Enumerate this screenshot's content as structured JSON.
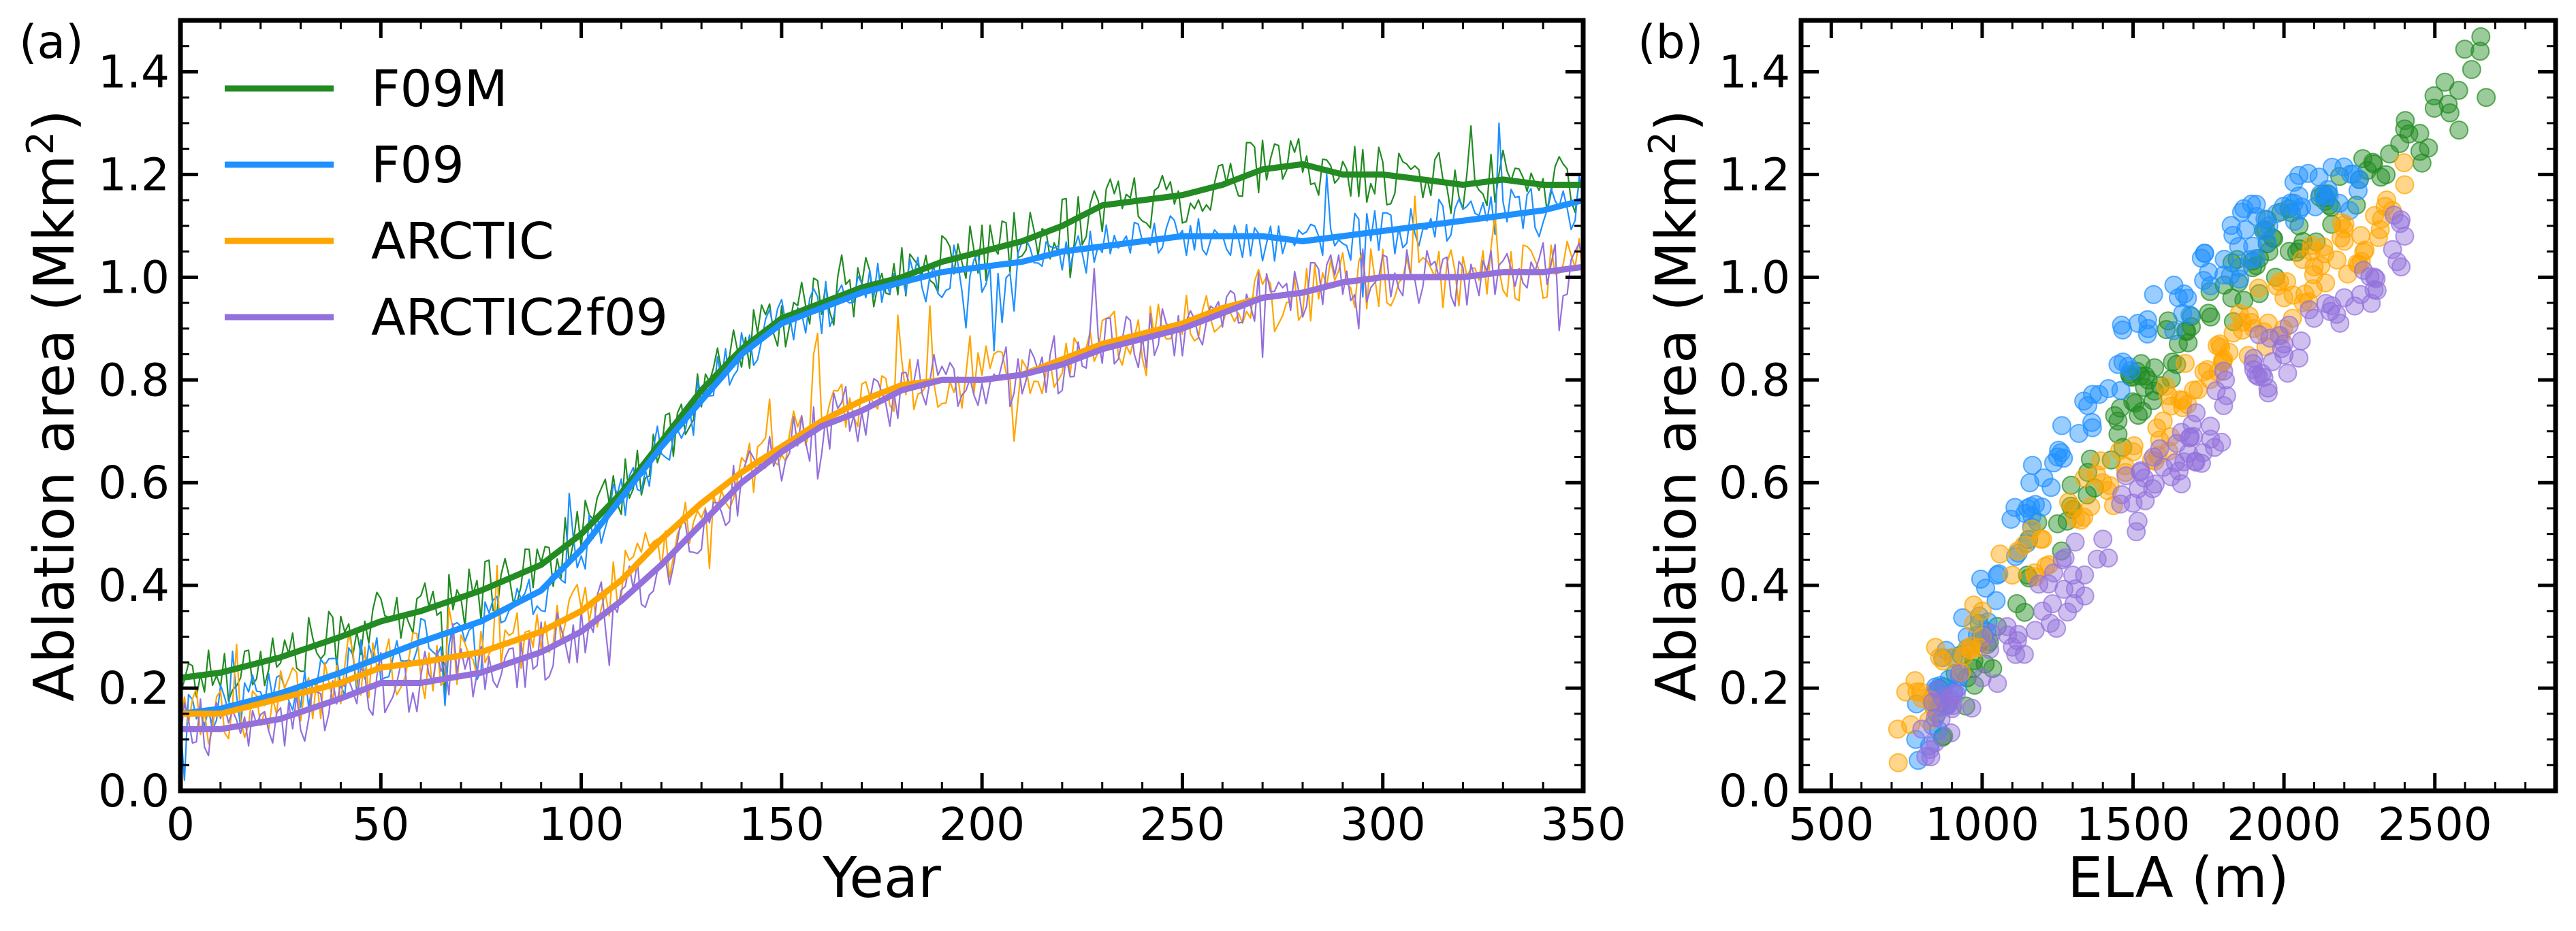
{
  "figure": {
    "colors": {
      "F09M": "#228b22",
      "F09": "#1e90ff",
      "ARCTIC": "#ffa500",
      "ARCTIC2f09": "#9370db"
    }
  },
  "chart_data": [
    {
      "type": "line",
      "panel_label": "(a)",
      "xlabel": "Year",
      "ylabel": "Ablation area (Mkm",
      "ylabel_sup": "2",
      "ylabel_close": ")",
      "xlim": [
        0,
        350
      ],
      "ylim": [
        0,
        1.5
      ],
      "xticks": [
        0,
        50,
        100,
        150,
        200,
        250,
        300,
        350
      ],
      "yticks": [
        0.0,
        0.2,
        0.4,
        0.6,
        0.8,
        1.0,
        1.2,
        1.4
      ],
      "xtick_labels": [
        "0",
        "50",
        "100",
        "150",
        "200",
        "250",
        "300",
        "350"
      ],
      "ytick_labels": [
        "0.0",
        "0.2",
        "0.4",
        "0.6",
        "0.8",
        "1.0",
        "1.2",
        "1.4"
      ],
      "legend": {
        "placement": "upper-left",
        "entries": [
          "F09M",
          "F09",
          "ARCTIC",
          "ARCTIC2f09"
        ]
      },
      "grid": false,
      "series_style": "thin lines = annual values, thick lines = running mean",
      "series": [
        {
          "name": "F09M",
          "color": "#228b22",
          "mean_x": [
            0,
            10,
            25,
            40,
            50,
            60,
            75,
            90,
            100,
            110,
            120,
            130,
            140,
            150,
            160,
            170,
            180,
            190,
            200,
            210,
            220,
            230,
            240,
            250,
            260,
            270,
            280,
            290,
            300,
            310,
            320,
            330,
            340,
            350
          ],
          "mean_y": [
            0.22,
            0.23,
            0.26,
            0.3,
            0.33,
            0.35,
            0.39,
            0.44,
            0.5,
            0.58,
            0.68,
            0.78,
            0.86,
            0.92,
            0.95,
            0.98,
            1.0,
            1.03,
            1.05,
            1.07,
            1.1,
            1.14,
            1.15,
            1.16,
            1.18,
            1.21,
            1.22,
            1.2,
            1.2,
            1.19,
            1.18,
            1.19,
            1.18,
            1.18
          ],
          "noise": 0.06
        },
        {
          "name": "F09",
          "color": "#1e90ff",
          "mean_x": [
            0,
            10,
            25,
            40,
            50,
            60,
            75,
            90,
            100,
            110,
            120,
            130,
            140,
            150,
            160,
            170,
            180,
            190,
            200,
            210,
            220,
            230,
            240,
            250,
            260,
            270,
            280,
            290,
            300,
            310,
            320,
            330,
            340,
            350
          ],
          "mean_y": [
            0.15,
            0.16,
            0.19,
            0.23,
            0.26,
            0.29,
            0.33,
            0.39,
            0.47,
            0.57,
            0.67,
            0.76,
            0.85,
            0.91,
            0.94,
            0.97,
            0.99,
            1.01,
            1.02,
            1.03,
            1.05,
            1.06,
            1.07,
            1.08,
            1.08,
            1.08,
            1.07,
            1.08,
            1.09,
            1.1,
            1.11,
            1.12,
            1.13,
            1.15
          ],
          "noise": 0.05
        },
        {
          "name": "ARCTIC",
          "color": "#ffa500",
          "mean_x": [
            0,
            10,
            25,
            40,
            50,
            60,
            75,
            90,
            100,
            110,
            120,
            130,
            140,
            150,
            160,
            170,
            180,
            190,
            200,
            210,
            220,
            230,
            240,
            250,
            260,
            270,
            280,
            290,
            300,
            310,
            320,
            330,
            340,
            350
          ],
          "mean_y": [
            0.15,
            0.15,
            0.18,
            0.21,
            0.24,
            0.25,
            0.27,
            0.31,
            0.35,
            0.41,
            0.49,
            0.56,
            0.62,
            0.67,
            0.72,
            0.76,
            0.79,
            0.8,
            0.8,
            0.81,
            0.84,
            0.87,
            0.89,
            0.91,
            0.94,
            0.96,
            0.97,
            0.99,
            1.0,
            1.0,
            1.0,
            1.01,
            1.01,
            1.02
          ],
          "noise": 0.06
        },
        {
          "name": "ARCTIC2f09",
          "color": "#9370db",
          "mean_x": [
            0,
            10,
            25,
            40,
            50,
            60,
            75,
            90,
            100,
            110,
            120,
            130,
            140,
            150,
            160,
            170,
            180,
            190,
            200,
            210,
            220,
            230,
            240,
            250,
            260,
            270,
            280,
            290,
            300,
            310,
            320,
            330,
            340,
            350
          ],
          "mean_y": [
            0.12,
            0.12,
            0.14,
            0.18,
            0.21,
            0.21,
            0.23,
            0.27,
            0.31,
            0.37,
            0.44,
            0.52,
            0.6,
            0.66,
            0.71,
            0.74,
            0.78,
            0.8,
            0.8,
            0.81,
            0.83,
            0.86,
            0.88,
            0.9,
            0.93,
            0.96,
            0.97,
            0.99,
            1.0,
            1.0,
            1.0,
            1.01,
            1.01,
            1.02
          ],
          "noise": 0.06
        }
      ]
    },
    {
      "type": "scatter",
      "panel_label": "(b)",
      "xlabel": "ELA (m)",
      "ylabel": "Ablation area (Mkm",
      "ylabel_sup": "2",
      "ylabel_close": ")",
      "xlim": [
        400,
        2900
      ],
      "ylim": [
        0,
        1.5
      ],
      "xticks": [
        500,
        1000,
        1500,
        2000,
        2500
      ],
      "yticks": [
        0.0,
        0.2,
        0.4,
        0.6,
        0.8,
        1.0,
        1.2,
        1.4
      ],
      "xtick_labels": [
        "500",
        "1000",
        "1500",
        "2000",
        "2500"
      ],
      "ytick_labels": [
        "0.0",
        "0.2",
        "0.4",
        "0.6",
        "0.8",
        "1.0",
        "1.2",
        "1.4"
      ],
      "grid": false,
      "series": [
        {
          "name": "F09M",
          "color": "#228b22",
          "alpha": 0.45,
          "points_x": [
            850,
            950,
            1050,
            1150,
            1250,
            1350,
            1450,
            1550,
            1650,
            1750,
            1850,
            1950,
            2050,
            2150,
            2250,
            2350,
            2450,
            2550,
            2650,
            2670
          ],
          "points_y": [
            0.15,
            0.22,
            0.32,
            0.42,
            0.52,
            0.62,
            0.72,
            0.8,
            0.87,
            0.93,
            0.99,
            1.05,
            1.1,
            1.14,
            1.19,
            1.24,
            1.28,
            1.32,
            1.44,
            1.35
          ]
        },
        {
          "name": "F09",
          "color": "#1e90ff",
          "alpha": 0.45,
          "points_x": [
            780,
            850,
            950,
            1050,
            1150,
            1250,
            1350,
            1450,
            1550,
            1650,
            1750,
            1850,
            1950,
            2050,
            2150,
            2250
          ],
          "points_y": [
            0.1,
            0.18,
            0.3,
            0.42,
            0.55,
            0.65,
            0.75,
            0.83,
            0.9,
            0.96,
            1.01,
            1.06,
            1.1,
            1.13,
            1.16,
            1.19
          ]
        },
        {
          "name": "ARCTIC",
          "color": "#ffa500",
          "alpha": 0.45,
          "points_x": [
            720,
            800,
            900,
            1000,
            1100,
            1200,
            1300,
            1400,
            1500,
            1600,
            1700,
            1800,
            1900,
            2000,
            2100,
            2200,
            2300,
            2400
          ],
          "points_y": [
            0.12,
            0.18,
            0.26,
            0.35,
            0.42,
            0.49,
            0.55,
            0.6,
            0.66,
            0.72,
            0.78,
            0.84,
            0.9,
            0.96,
            1.02,
            1.07,
            1.12,
            1.18
          ]
        },
        {
          "name": "ARCTIC2f09",
          "color": "#9370db",
          "alpha": 0.45,
          "points_x": [
            800,
            900,
            1000,
            1100,
            1200,
            1300,
            1400,
            1500,
            1600,
            1700,
            1800,
            1900,
            2000,
            2100,
            2200,
            2300,
            2400
          ],
          "points_y": [
            0.12,
            0.16,
            0.22,
            0.28,
            0.35,
            0.42,
            0.49,
            0.56,
            0.63,
            0.69,
            0.75,
            0.82,
            0.87,
            0.92,
            0.96,
            1.0,
            1.08
          ]
        }
      ]
    }
  ]
}
